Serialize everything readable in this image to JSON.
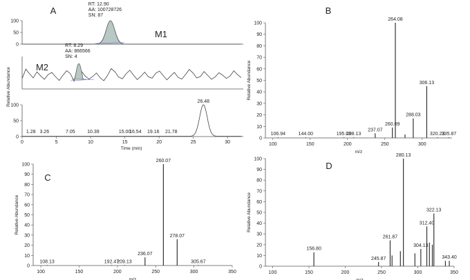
{
  "chart_data": [
    {
      "id": "A",
      "type": "line",
      "panel_letter": "A",
      "subplots": [
        {
          "name": "M1",
          "ylabel": "",
          "y_ticks": [
            "100",
            "50",
            "0"
          ],
          "peaks": [
            {
              "rt": 12.9,
              "annotation": [
                "RT: 12.90",
                "AA: 100728726",
                "SN: 87"
              ],
              "filled": true
            }
          ]
        },
        {
          "name": "M2",
          "ylabel": "Relative Abundance",
          "y_ticks": [],
          "peaks": [
            {
              "rt": 8.29,
              "annotation": [
                "RT: 8.29",
                "AA: 866566",
                "SN: 4"
              ],
              "filled": true
            }
          ]
        },
        {
          "name": "",
          "ylabel": "",
          "y_ticks": [
            "100",
            "50",
            "0"
          ],
          "peak_labels": [
            {
              "x": 1.28,
              "label": "1.28"
            },
            {
              "x": 3.26,
              "label": "3.26"
            },
            {
              "x": 7.05,
              "label": "7.05"
            },
            {
              "x": 10.39,
              "label": "10.39"
            },
            {
              "x": 15.0,
              "label": "15.00"
            },
            {
              "x": 16.54,
              "label": "16.54"
            },
            {
              "x": 19.16,
              "label": "19.16"
            },
            {
              "x": 21.78,
              "label": "21.78"
            },
            {
              "x": 26.48,
              "label": "26.48"
            }
          ],
          "main_peak": {
            "x": 26.48,
            "y": 100
          }
        }
      ],
      "xlabel": "Time (min)",
      "xlim": [
        0,
        32
      ],
      "x_ticks": [
        "0",
        "5",
        "10",
        "15",
        "20",
        "25",
        "30"
      ]
    },
    {
      "id": "B",
      "type": "bar",
      "panel_letter": "B",
      "xlabel": "m/z",
      "ylabel": "Relative Abundance",
      "xlim": [
        90,
        340
      ],
      "ylim": [
        0,
        100
      ],
      "x_ticks": [
        "100",
        "150",
        "200",
        "250",
        "300"
      ],
      "y_ticks": [
        "0",
        "10",
        "20",
        "30",
        "40",
        "50",
        "60",
        "70",
        "80",
        "90",
        "100"
      ],
      "peaks": [
        {
          "mz": 106.94,
          "y": 0.5,
          "label": "106.94"
        },
        {
          "mz": 144.0,
          "y": 0.5,
          "label": "144.00"
        },
        {
          "mz": 195.03,
          "y": 0.5,
          "label": "195.03"
        },
        {
          "mz": 208.13,
          "y": 0.5,
          "label": "208.13"
        },
        {
          "mz": 237.07,
          "y": 4,
          "label": "237.07"
        },
        {
          "mz": 260.09,
          "y": 9,
          "label": "260.09"
        },
        {
          "mz": 264.08,
          "y": 100,
          "label": "264.08"
        },
        {
          "mz": 277.0,
          "y": 3,
          "label": ""
        },
        {
          "mz": 288.03,
          "y": 17,
          "label": "288.03"
        },
        {
          "mz": 306.13,
          "y": 45,
          "label": "306.13"
        },
        {
          "mz": 320.23,
          "y": 0.5,
          "label": "320.23"
        },
        {
          "mz": 335.87,
          "y": 0.5,
          "label": "335.87"
        }
      ]
    },
    {
      "id": "C",
      "type": "bar",
      "panel_letter": "C",
      "xlabel": "m/z",
      "ylabel": "Relative Abundance",
      "xlim": [
        90,
        350
      ],
      "ylim": [
        0,
        100
      ],
      "x_ticks": [
        "100",
        "150",
        "200",
        "250",
        "300",
        "350"
      ],
      "y_ticks": [
        "0",
        "10",
        "20",
        "30",
        "40",
        "50",
        "60",
        "70",
        "80",
        "90",
        "100"
      ],
      "peaks": [
        {
          "mz": 108.13,
          "y": 0.5,
          "label": "108.13"
        },
        {
          "mz": 192.47,
          "y": 0.5,
          "label": "192.47"
        },
        {
          "mz": 209.13,
          "y": 0.5,
          "label": "209.13"
        },
        {
          "mz": 236.07,
          "y": 8,
          "label": "236.07"
        },
        {
          "mz": 260.07,
          "y": 100,
          "label": "260.07"
        },
        {
          "mz": 278.07,
          "y": 26,
          "label": "278.07"
        },
        {
          "mz": 305.67,
          "y": 0.5,
          "label": "305.67"
        }
      ]
    },
    {
      "id": "D",
      "type": "bar",
      "panel_letter": "D",
      "xlabel": "m/z",
      "ylabel": "Relative Abundance",
      "xlim": [
        90,
        350
      ],
      "ylim": [
        0,
        100
      ],
      "x_ticks": [
        "100",
        "150",
        "200",
        "250",
        "300",
        "350"
      ],
      "y_ticks": [
        "0",
        "10",
        "20",
        "30",
        "40",
        "50",
        "60",
        "70",
        "80",
        "90",
        "100"
      ],
      "peaks": [
        {
          "mz": 156.8,
          "y": 13,
          "label": "156.80"
        },
        {
          "mz": 245.87,
          "y": 4,
          "label": "245.87"
        },
        {
          "mz": 261.87,
          "y": 24,
          "label": "261.87"
        },
        {
          "mz": 264.5,
          "y": 10,
          "label": ""
        },
        {
          "mz": 276.0,
          "y": 14,
          "label": ""
        },
        {
          "mz": 280.13,
          "y": 100,
          "label": "280.13"
        },
        {
          "mz": 296.0,
          "y": 12,
          "label": ""
        },
        {
          "mz": 304.13,
          "y": 16,
          "label": "304.13"
        },
        {
          "mz": 312.4,
          "y": 37,
          "label": "312.40"
        },
        {
          "mz": 316.0,
          "y": 22,
          "label": ""
        },
        {
          "mz": 320.0,
          "y": 20,
          "label": ""
        },
        {
          "mz": 322.13,
          "y": 49,
          "label": "322.13"
        },
        {
          "mz": 338.0,
          "y": 5,
          "label": ""
        },
        {
          "mz": 343.4,
          "y": 5,
          "label": "343.40"
        }
      ]
    }
  ]
}
